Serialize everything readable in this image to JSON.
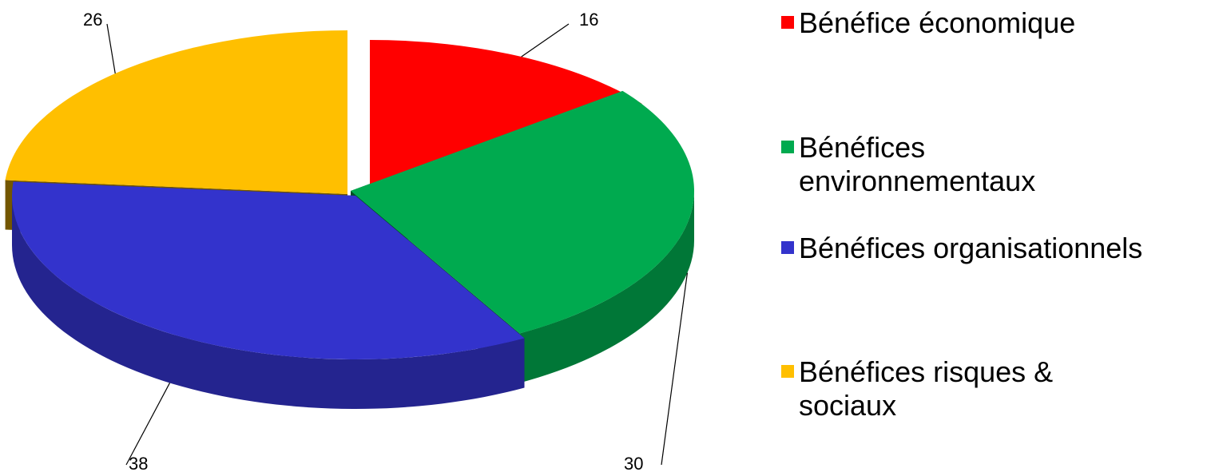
{
  "chart_data": {
    "type": "pie",
    "title": "",
    "categories": [
      "Bénéfice économique",
      "Bénéfices environnementaux",
      "Bénéfices organisationnels",
      "Bénéfices risques & sociaux"
    ],
    "values": [
      16,
      30,
      38,
      26
    ],
    "value_labels": [
      "16",
      "30",
      "38",
      "26"
    ],
    "colors": [
      "#FF0000",
      "#00AA4F",
      "#3333CC",
      "#FFBF00"
    ],
    "style": "3d-exploded",
    "legend_position": "right"
  },
  "legend": {
    "items": [
      {
        "label": "Bénéfice économique",
        "color": "#FF0000"
      },
      {
        "label": "Bénéfices environnementaux",
        "color": "#00AA4F"
      },
      {
        "label": "Bénéfices organisationnels",
        "color": "#3333CC"
      },
      {
        "label": "Bénéfices risques & sociaux",
        "color": "#FFBF00"
      }
    ]
  }
}
